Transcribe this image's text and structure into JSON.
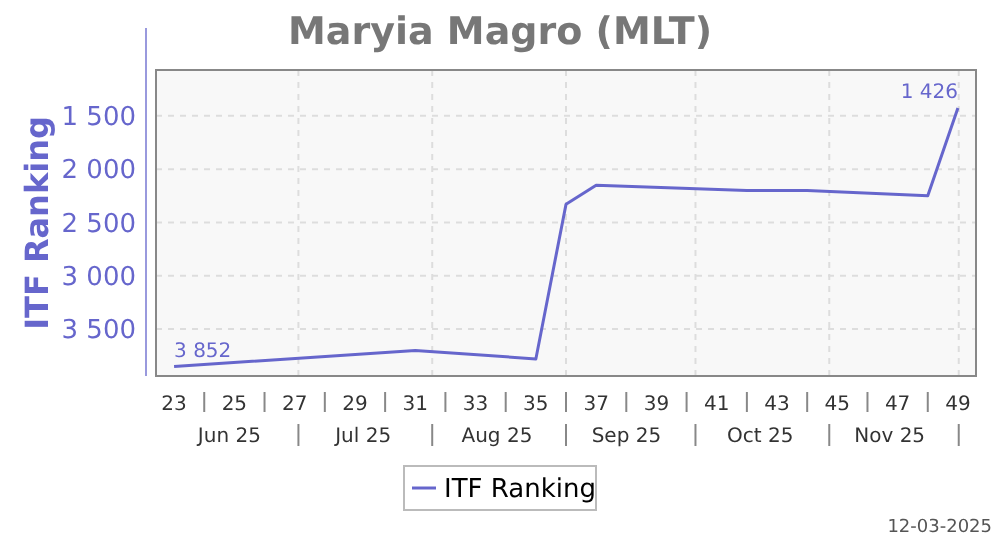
{
  "chart_data": {
    "type": "line",
    "title": "Maryia Magro (MLT)",
    "ylabel": "ITF Ranking",
    "x": [
      23,
      31,
      35,
      36,
      37,
      42,
      44,
      48,
      49
    ],
    "series": [
      {
        "name": "ITF Ranking",
        "color": "#6666cc",
        "values": [
          3852,
          3700,
          3780,
          2330,
          2150,
          2200,
          2200,
          2250,
          1426
        ],
        "value_labels": [
          "3 852",
          null,
          null,
          null,
          null,
          null,
          null,
          null,
          "1 426"
        ]
      }
    ],
    "xlim": [
      22.4,
      49.6
    ],
    "xticks": [
      23,
      {
        "value": 24,
        "label": null
      },
      25,
      {
        "value": 26,
        "label": null
      },
      27,
      {
        "value": 28,
        "label": null
      },
      29,
      {
        "value": 30,
        "label": null
      },
      31,
      {
        "value": 32,
        "label": null
      },
      33,
      {
        "value": 34,
        "label": null
      },
      35,
      {
        "value": 36,
        "label": null
      },
      37,
      {
        "value": 38,
        "label": null
      },
      39,
      {
        "value": 40,
        "label": null
      },
      41,
      {
        "value": 42,
        "label": null
      },
      43,
      {
        "value": 44,
        "label": null
      },
      45,
      {
        "value": 46,
        "label": null
      },
      47,
      {
        "value": 48,
        "label": null
      },
      49
    ],
    "x2lim": [
      "2025-05-29",
      "2025-12-05"
    ],
    "x2ticks": [
      {
        "value": "2025-06-15",
        "label": "Jun 25"
      },
      {
        "value": "2025-07-01",
        "label": null
      },
      {
        "value": "2025-07-16",
        "label": "Jul 25"
      },
      {
        "value": "2025-08-01",
        "label": null
      },
      {
        "value": "2025-08-16",
        "label": "Aug 25"
      },
      {
        "value": "2025-09-01",
        "label": null
      },
      {
        "value": "2025-09-15",
        "label": "Sep 25"
      },
      {
        "value": "2025-10-01",
        "label": null
      },
      {
        "value": "2025-10-16",
        "label": "Oct 25"
      },
      {
        "value": "2025-11-01",
        "label": null
      },
      {
        "value": "2025-11-15",
        "label": "Nov 25"
      },
      {
        "value": "2025-12-01",
        "label": null
      }
    ],
    "ylim": [
      3940,
      1070
    ],
    "yticks": [
      {
        "value": 1500,
        "label": "1 500"
      },
      {
        "value": 2000,
        "label": "2 000"
      },
      {
        "value": 2500,
        "label": "2 500"
      },
      {
        "value": 3000,
        "label": "3 000"
      },
      {
        "value": 3500,
        "label": "3 500"
      }
    ],
    "grid": true,
    "legend": "bottom",
    "line_style": "solid",
    "annotations": [
      "12-03-2025"
    ]
  }
}
